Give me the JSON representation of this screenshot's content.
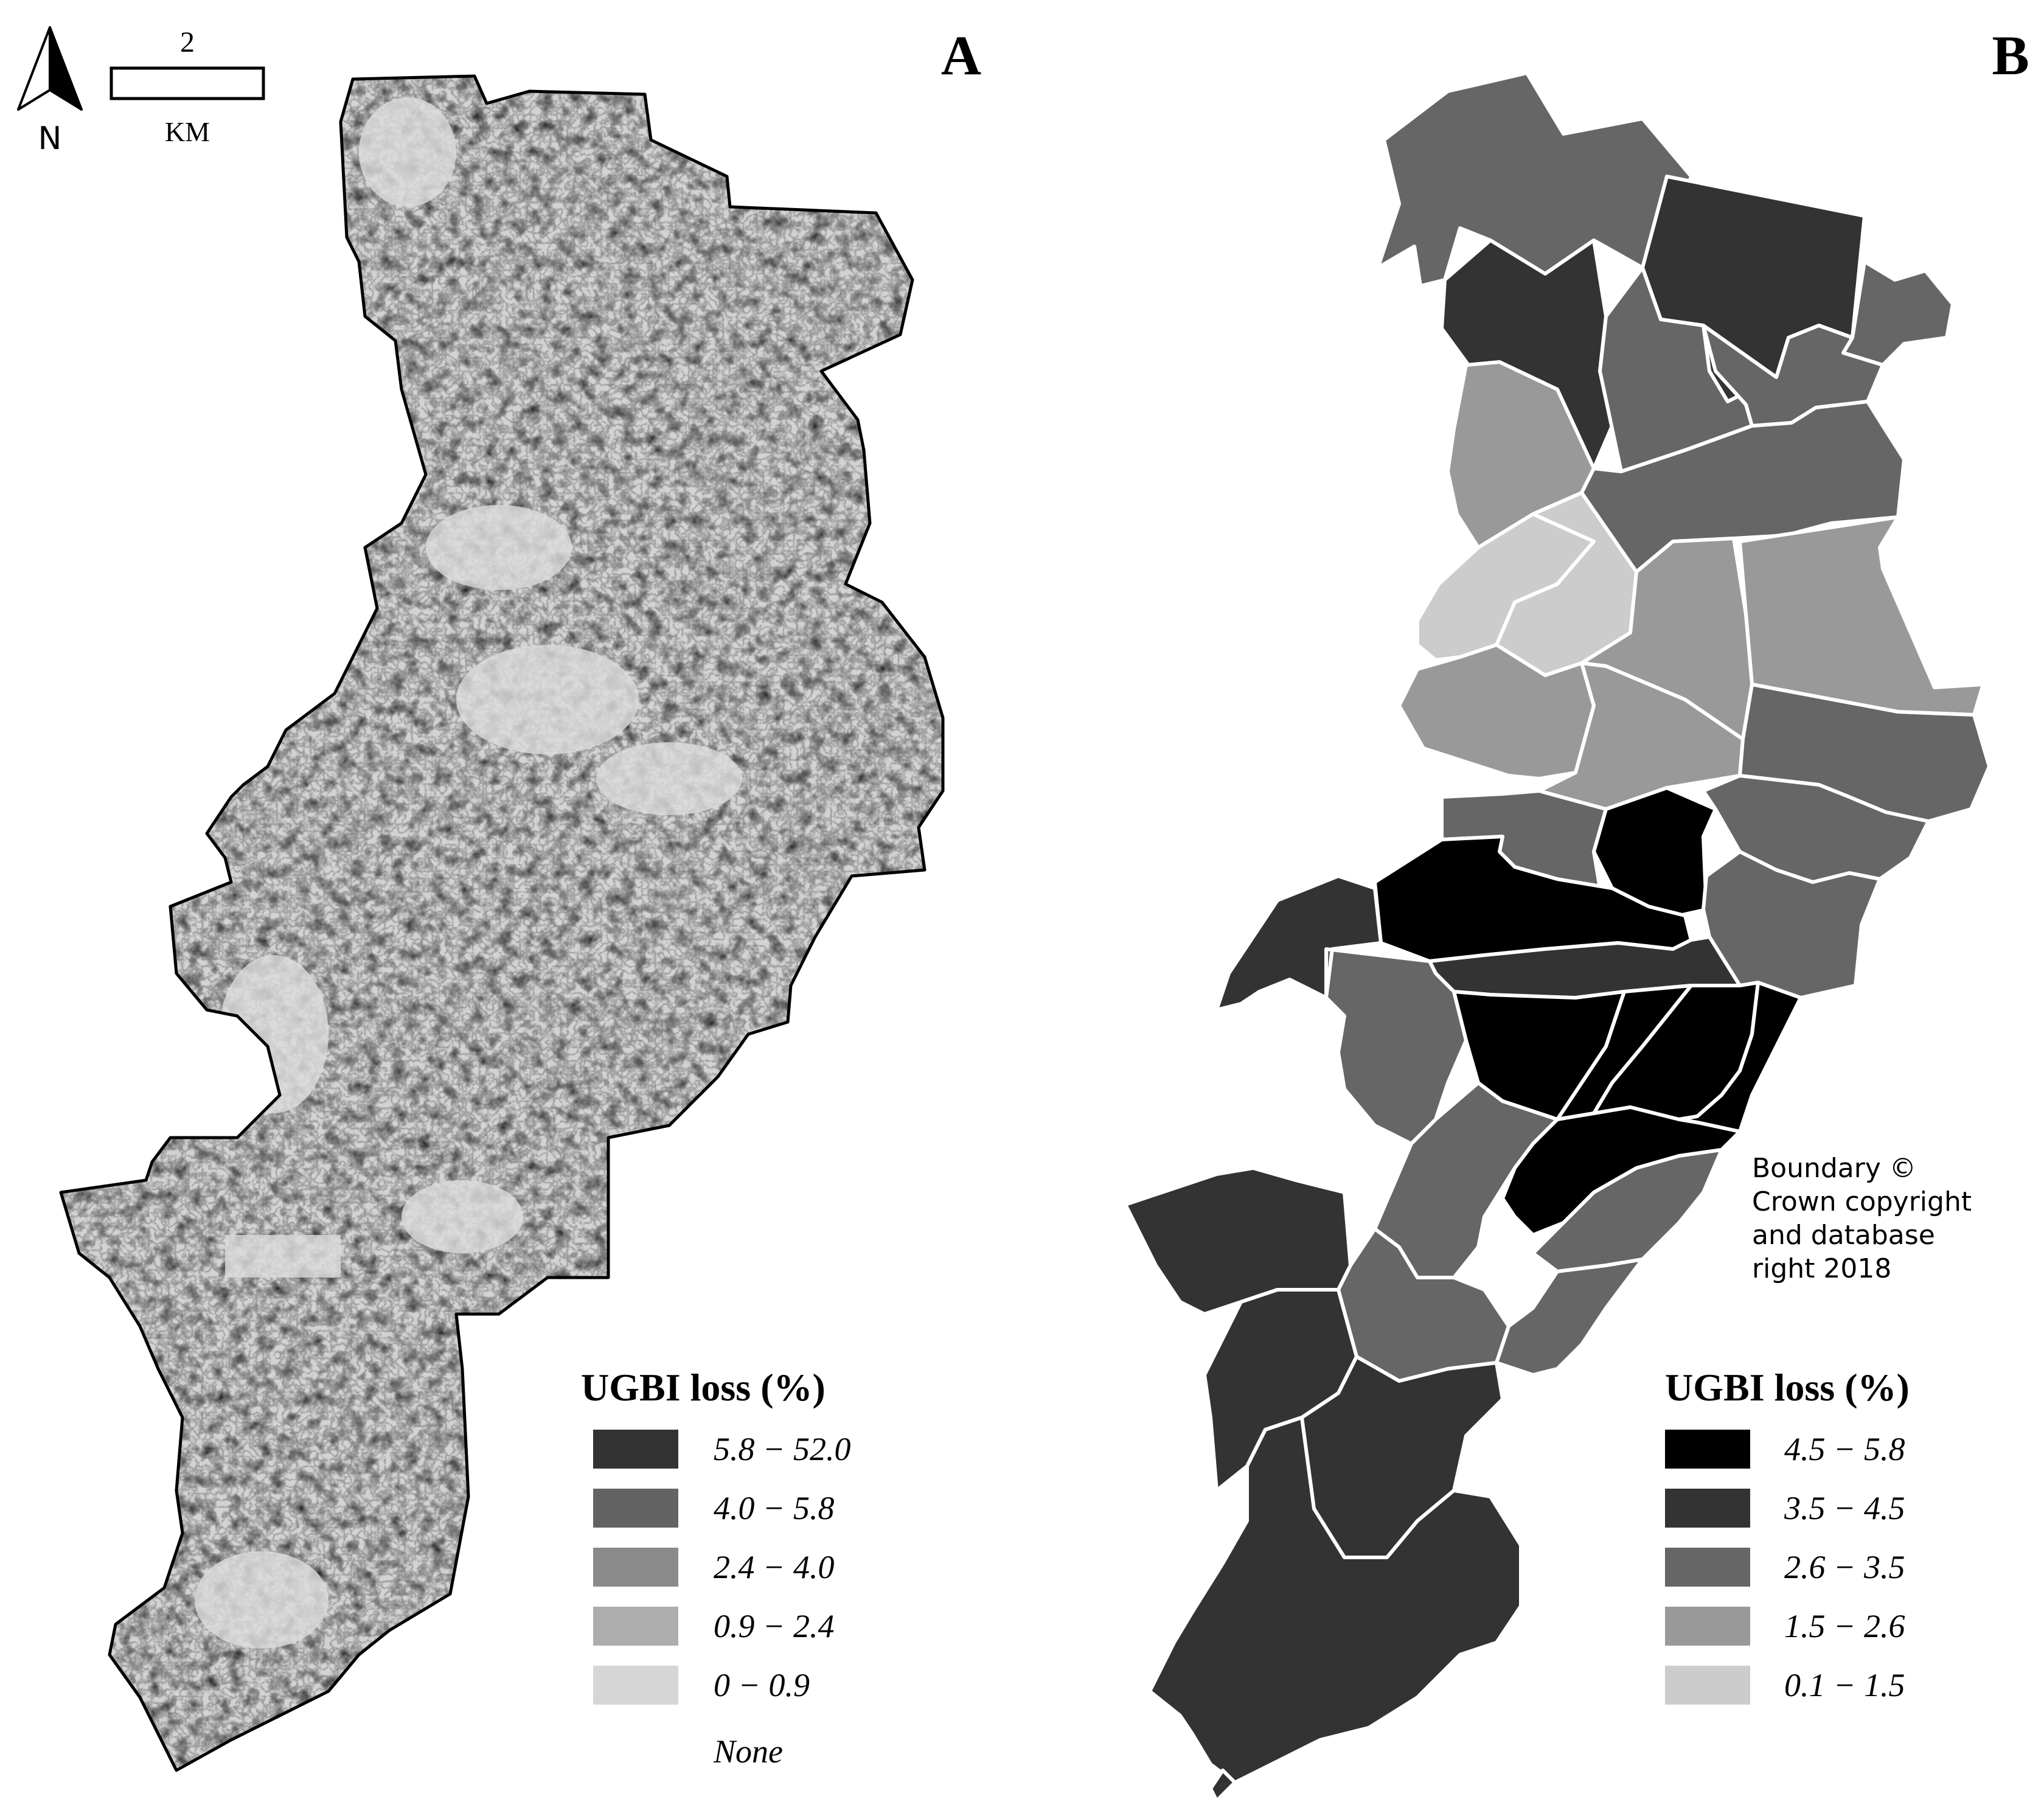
{
  "panel_a": {
    "label": "A",
    "north_label": "N",
    "scale_number": "2",
    "scale_unit": "KM",
    "legend": {
      "title": "UGBI loss (%)",
      "classes": [
        {
          "label": "5.8 − 52.0",
          "color": "#333333"
        },
        {
          "label": "4.0 − 5.8",
          "color": "#636363"
        },
        {
          "label": "2.4 − 4.0",
          "color": "#8a8a8a"
        },
        {
          "label": "0.9 − 2.4",
          "color": "#adadad"
        },
        {
          "label": "0 − 0.9",
          "color": "#d6d6d6"
        }
      ],
      "none_label": "None"
    }
  },
  "panel_b": {
    "label": "B",
    "attribution": [
      "Boundary ©",
      "Crown copyright",
      "and database",
      "right 2018"
    ],
    "legend": {
      "title": "UGBI loss (%)",
      "classes": [
        {
          "label": "4.5 − 5.8",
          "color": "#000000"
        },
        {
          "label": "3.5 − 4.5",
          "color": "#333333"
        },
        {
          "label": "2.6 − 3.5",
          "color": "#666666"
        },
        {
          "label": "1.5 − 2.6",
          "color": "#999999"
        },
        {
          "label": "0.1 − 1.5",
          "color": "#cccccc"
        }
      ]
    }
  }
}
